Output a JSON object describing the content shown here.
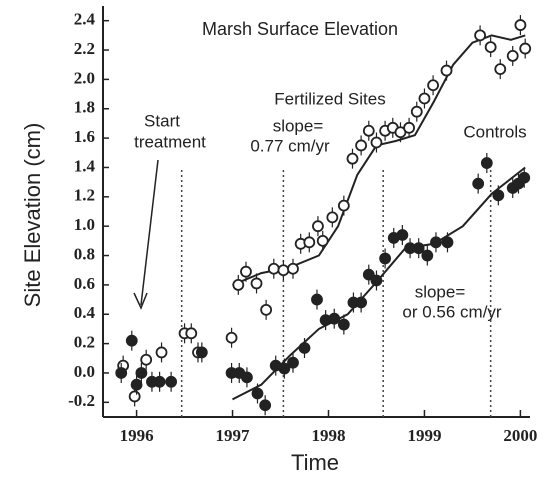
{
  "chart_data": {
    "type": "scatter",
    "title": "Marsh Surface Elevation",
    "y_label": "Site Elevation (cm)",
    "x_label": "Time",
    "annotations": {
      "start": [
        "Start",
        "treatment"
      ],
      "fertilized": "Fertilized Sites",
      "fert_slope": [
        "slope=",
        "0.77 cm/yr"
      ],
      "controls": "Controls",
      "ctrl_slope": [
        "slope=",
        "or 0.56 cm/yr"
      ]
    },
    "xlim": [
      1995.65,
      2000.1
    ],
    "xticks": [
      1996,
      1997,
      1998,
      1999,
      2000
    ],
    "ylim": [
      -0.3,
      2.5
    ],
    "yticks": [
      -0.2,
      {
        "value": 0,
        "label": "0.0"
      },
      0.2,
      0.4,
      0.6,
      0.8,
      {
        "value": 1,
        "label": "1.0"
      },
      1.2,
      1.4,
      1.6,
      1.8,
      {
        "value": 2,
        "label": "2.0"
      },
      2.2,
      2.4
    ],
    "vlines": [
      1996.47,
      1997.53,
      1998.57,
      1999.69
    ],
    "series": [
      {
        "name": "Fertilized Sites",
        "marker": "open",
        "color": "#222",
        "x": [
          1995.86,
          1995.98,
          1996.1,
          1996.26,
          1996.5,
          1996.57,
          1996.64,
          1996.99,
          1997.06,
          1997.14,
          1997.25,
          1997.35,
          1997.43,
          1997.53,
          1997.63,
          1997.71,
          1997.8,
          1997.89,
          1997.94,
          1998.04,
          1998.16,
          1998.25,
          1998.34,
          1998.42,
          1998.5,
          1998.59,
          1998.67,
          1998.75,
          1998.84,
          1998.92,
          1999.0,
          1999.09,
          1999.23,
          1999.58,
          1999.69,
          1999.79,
          1999.92,
          2000.0,
          2000.05
        ],
        "values": [
          0.05,
          -0.16,
          0.09,
          0.14,
          0.27,
          0.27,
          0.14,
          0.24,
          0.6,
          0.69,
          0.61,
          0.43,
          0.71,
          0.7,
          0.71,
          0.88,
          0.89,
          1.0,
          0.9,
          1.06,
          1.14,
          1.46,
          1.55,
          1.65,
          1.57,
          1.65,
          1.67,
          1.64,
          1.67,
          1.78,
          1.87,
          1.96,
          2.06,
          2.3,
          2.22,
          2.07,
          2.16,
          2.37,
          2.21
        ],
        "fit_x": [
          1997.0,
          1997.3,
          1997.6,
          1997.9,
          1998.1,
          1998.3,
          1998.5,
          1998.7,
          1998.9,
          1999.1,
          1999.3,
          1999.5,
          1999.7,
          1999.9,
          2000.05
        ],
        "fit_values": [
          0.6,
          0.68,
          0.72,
          0.8,
          1.0,
          1.35,
          1.55,
          1.58,
          1.62,
          1.85,
          2.1,
          2.25,
          2.3,
          2.27,
          2.3
        ]
      },
      {
        "name": "Controls",
        "marker": "filled",
        "color": "#222",
        "x": [
          1995.84,
          1995.95,
          1996.0,
          1996.05,
          1996.16,
          1996.24,
          1996.36,
          1996.68,
          1996.99,
          1997.07,
          1997.15,
          1997.26,
          1997.34,
          1997.45,
          1997.54,
          1997.63,
          1997.75,
          1997.88,
          1997.97,
          1998.06,
          1998.16,
          1998.26,
          1998.34,
          1998.42,
          1998.5,
          1998.59,
          1998.68,
          1998.77,
          1998.85,
          1998.94,
          1999.03,
          1999.12,
          1999.24,
          1999.56,
          1999.65,
          1999.77,
          1999.92,
          1999.98,
          2000.04
        ],
        "values": [
          0.0,
          0.22,
          -0.08,
          0.0,
          -0.06,
          -0.06,
          -0.06,
          0.14,
          0.0,
          0.0,
          -0.03,
          -0.14,
          -0.22,
          0.05,
          0.03,
          0.07,
          0.17,
          0.5,
          0.36,
          0.37,
          0.33,
          0.48,
          0.48,
          0.67,
          0.63,
          0.78,
          0.92,
          0.94,
          0.85,
          0.85,
          0.8,
          0.89,
          0.89,
          1.29,
          1.43,
          1.21,
          1.26,
          1.29,
          1.33
        ],
        "fit_x": [
          1997.0,
          1997.3,
          1997.6,
          1997.9,
          1998.2,
          1998.5,
          1998.8,
          1999.1,
          1999.4,
          1999.7,
          2000.05
        ],
        "fit_values": [
          -0.18,
          -0.08,
          0.12,
          0.3,
          0.4,
          0.62,
          0.85,
          0.88,
          1.0,
          1.22,
          1.4
        ]
      }
    ]
  }
}
